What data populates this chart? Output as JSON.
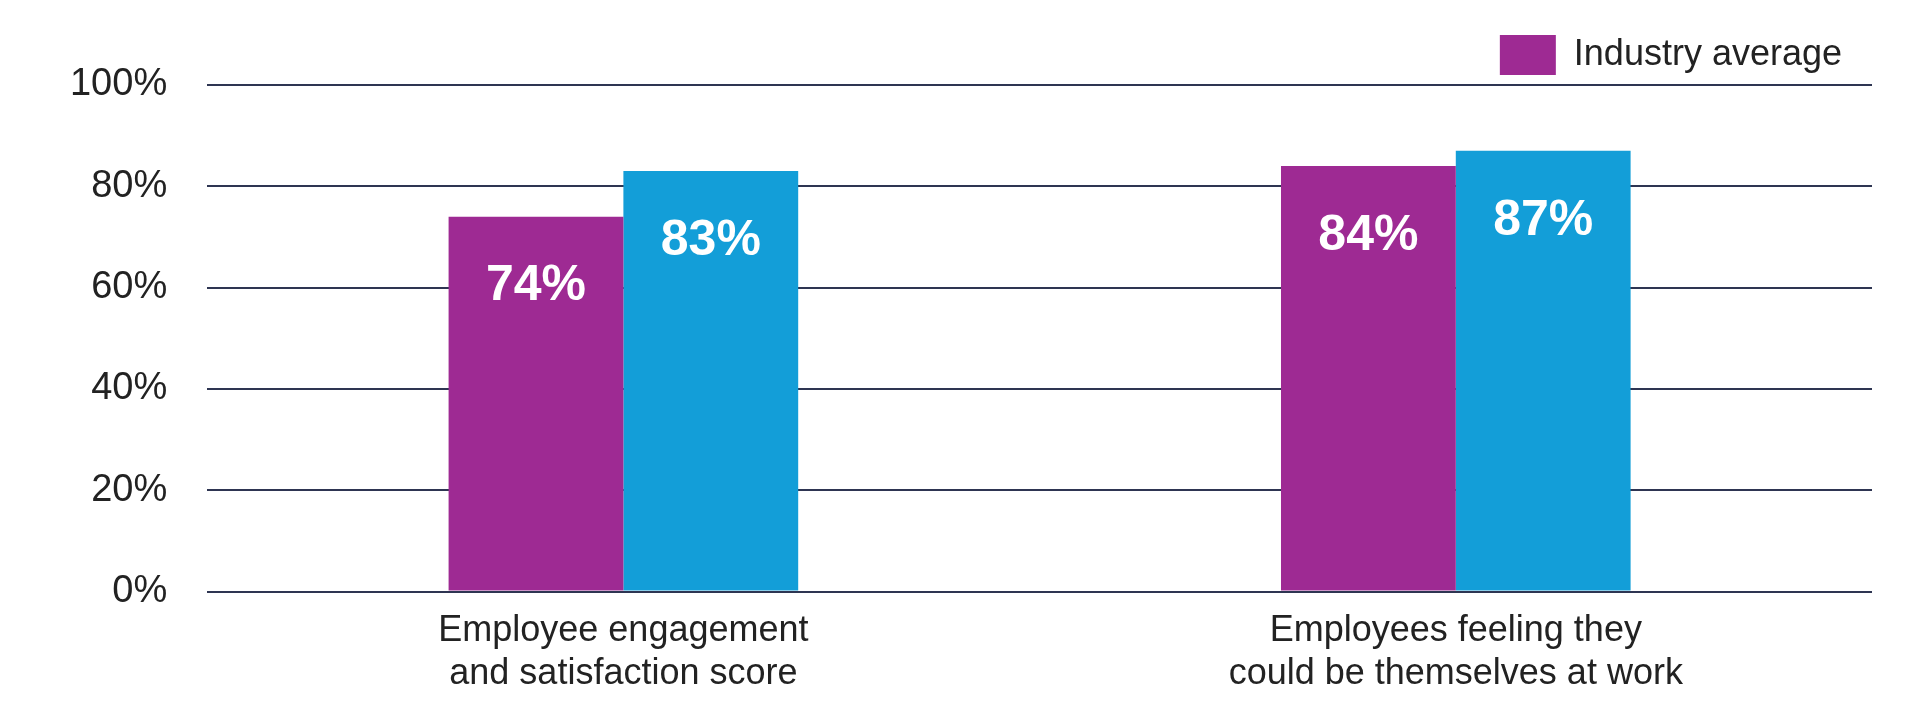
{
  "chart_data": {
    "type": "bar",
    "categories": [
      "Employee engagement and satisfaction score",
      "Employees feeling they could be themselves at work"
    ],
    "series": [
      {
        "name": "Industry average",
        "color": "#9e2a93",
        "values": [
          74,
          84
        ],
        "value_labels": [
          "74%",
          "84%"
        ]
      },
      {
        "color": "#139ed8",
        "values": [
          83,
          87
        ],
        "value_labels": [
          "83%",
          "87%"
        ]
      }
    ],
    "ylim": [
      0,
      100
    ],
    "yticks": [
      {
        "value": 0,
        "label": "0%"
      },
      {
        "value": 20,
        "label": "20%"
      },
      {
        "value": 40,
        "label": "40%"
      },
      {
        "value": 60,
        "label": "60%"
      },
      {
        "value": 80,
        "label": "80%"
      },
      {
        "value": 100,
        "label": "100%"
      }
    ],
    "grid": "y",
    "legend": "top right"
  }
}
